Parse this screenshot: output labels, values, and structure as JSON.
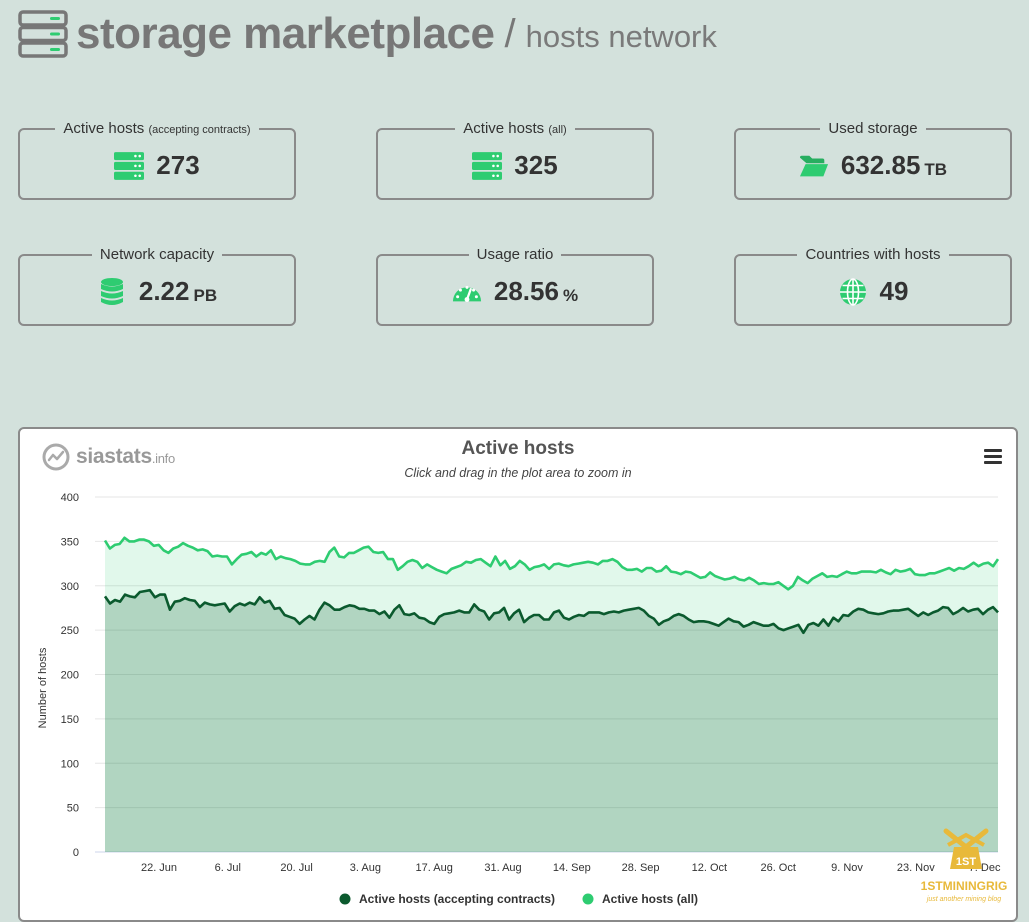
{
  "header": {
    "title": "storage marketplace",
    "separator": "/",
    "subtitle": "hosts network",
    "icon": "server-stack-icon"
  },
  "stats": [
    {
      "label": "Active hosts",
      "label_small": "(accepting contracts)",
      "value": "273",
      "unit": "",
      "icon": "server-icon"
    },
    {
      "label": "Active hosts",
      "label_small": "(all)",
      "value": "325",
      "unit": "",
      "icon": "server-icon"
    },
    {
      "label": "Used storage",
      "label_small": "",
      "value": "632.85",
      "unit": "TB",
      "icon": "folder-open-icon"
    },
    {
      "label": "Network capacity",
      "label_small": "",
      "value": "2.22",
      "unit": "PB",
      "icon": "database-icon"
    },
    {
      "label": "Usage ratio",
      "label_small": "",
      "value": "28.56",
      "unit": "%",
      "icon": "gauge-icon"
    },
    {
      "label": "Countries with hosts",
      "label_small": "",
      "value": "49",
      "unit": "",
      "icon": "globe-icon"
    }
  ],
  "colors": {
    "accent": "#2ecc71",
    "dark_green": "#0b5a2e",
    "background": "#d3e1dc"
  },
  "chart": {
    "brand": "siastats",
    "brand_suffix": ".info",
    "menu_icon": "hamburger-menu-icon",
    "watermark": {
      "line1": "1STMININGRIG",
      "line2": "just another mining blog",
      "badge": "1ST"
    }
  },
  "chart_data": {
    "type": "area",
    "title": "Active hosts",
    "subtitle": "Click and drag in the plot area to zoom in",
    "ylabel": "Number of hosts",
    "xlabel": "",
    "ylim": [
      0,
      400
    ],
    "yticks": [
      0,
      50,
      100,
      150,
      200,
      250,
      300,
      350,
      400
    ],
    "xticks": [
      "22. Jun",
      "6. Jul",
      "20. Jul",
      "3. Aug",
      "17. Aug",
      "31. Aug",
      "14. Sep",
      "28. Sep",
      "12. Oct",
      "26. Oct",
      "9. Nov",
      "23. Nov",
      "7. Dec"
    ],
    "grid": true,
    "legend_position": "bottom",
    "series": [
      {
        "name": "Active hosts (accepting contracts)",
        "color": "#0b5a2e",
        "values": [
          288,
          280,
          284,
          282,
          290,
          288,
          287,
          293,
          294,
          295,
          287,
          290,
          290,
          273,
          282,
          283,
          286,
          284,
          283,
          276,
          281,
          279,
          278,
          279,
          280,
          271,
          277,
          280,
          278,
          281,
          279,
          287,
          281,
          283,
          274,
          275,
          267,
          265,
          263,
          257,
          262,
          266,
          262,
          273,
          281,
          278,
          273,
          273,
          276,
          278,
          277,
          274,
          274,
          272,
          272,
          268,
          271,
          264,
          273,
          278,
          268,
          267,
          269,
          264,
          263,
          259,
          257,
          265,
          268,
          269,
          270,
          272,
          270,
          270,
          279,
          273,
          271,
          262,
          269,
          270,
          275,
          262,
          269,
          273,
          259,
          264,
          267,
          267,
          262,
          262,
          270,
          272,
          264,
          262,
          265,
          267,
          266,
          270,
          270,
          270,
          268,
          270,
          271,
          270,
          272,
          273,
          274,
          275,
          272,
          266,
          263,
          256,
          260,
          262,
          266,
          268,
          266,
          262,
          259,
          260,
          260,
          259,
          257,
          255,
          259,
          263,
          260,
          259,
          254,
          256,
          259,
          257,
          255,
          255,
          257,
          252,
          250,
          252,
          254,
          256,
          247,
          256,
          258,
          255,
          262,
          255,
          264,
          260,
          267,
          266,
          271,
          274,
          273,
          270,
          269,
          268,
          269,
          271,
          272,
          272,
          273,
          274,
          270,
          266,
          270,
          267,
          270,
          272,
          276,
          275,
          268,
          271,
          275,
          271,
          273,
          274,
          268,
          273,
          276,
          270
        ]
      },
      {
        "name": "Active hosts (all)",
        "color": "#2ecc71",
        "values": [
          351,
          342,
          346,
          347,
          354,
          350,
          350,
          352,
          352,
          350,
          345,
          346,
          340,
          337,
          342,
          344,
          348,
          345,
          343,
          340,
          341,
          339,
          333,
          334,
          333,
          333,
          324,
          330,
          335,
          336,
          338,
          333,
          337,
          335,
          340,
          330,
          333,
          331,
          330,
          328,
          325,
          324,
          324,
          327,
          328,
          327,
          338,
          343,
          333,
          332,
          337,
          337,
          340,
          343,
          344,
          338,
          337,
          338,
          330,
          330,
          318,
          322,
          327,
          329,
          327,
          320,
          324,
          321,
          318,
          316,
          314,
          319,
          321,
          323,
          327,
          326,
          329,
          330,
          326,
          322,
          333,
          323,
          328,
          319,
          322,
          328,
          324,
          318,
          321,
          322,
          324,
          319,
          324,
          325,
          323,
          322,
          324,
          325,
          326,
          327,
          326,
          324,
          328,
          328,
          330,
          327,
          321,
          318,
          318,
          319,
          316,
          320,
          320,
          316,
          317,
          322,
          316,
          315,
          313,
          316,
          315,
          312,
          309,
          310,
          315,
          311,
          309,
          307,
          308,
          310,
          307,
          306,
          309,
          306,
          302,
          303,
          302,
          302,
          304,
          300,
          296,
          300,
          310,
          306,
          303,
          308,
          311,
          314,
          310,
          311,
          310,
          313,
          316,
          314,
          314,
          316,
          316,
          316,
          315,
          318,
          315,
          313,
          318,
          316,
          317,
          319,
          313,
          312,
          312,
          314,
          314,
          316,
          318,
          320,
          317,
          320,
          319,
          322,
          326,
          322,
          325,
          326,
          322,
          330
        ]
      }
    ]
  }
}
